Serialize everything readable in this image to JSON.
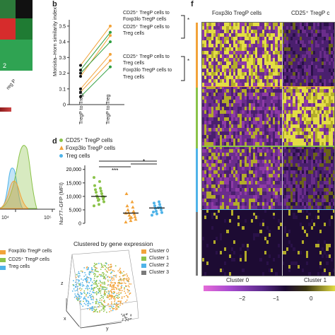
{
  "panel_b": {
    "letter": "b",
    "ylabel": "Morisita–Horn similarity index",
    "yticks": [
      "0",
      "0.1",
      "0.2",
      "0.3",
      "0.4",
      "0.5"
    ],
    "xticks": [
      "TregP to TregP",
      "TregP to Treg"
    ],
    "legend": [
      {
        "text": "CD25⁺ TregP cells to",
        "color": "#2e9e3e"
      },
      {
        "text": "Foxp3lo TregP cells",
        "color": "#2e9e3e"
      },
      {
        "text": "CD25⁺ TregP cells to",
        "color": "#f2a33a"
      },
      {
        "text": "Treg cells",
        "color": "#f2a33a"
      },
      {
        "text": "Foxp3lo TregP cells to",
        "color": "#f2a33a"
      },
      {
        "text": "Treg cells",
        "color": "#f2a33a"
      }
    ],
    "star1": "*",
    "star2": "*"
  },
  "panel_d": {
    "letter": "d",
    "legend": [
      {
        "text": "CD25⁺ TregP cells",
        "color": "#8bc34a",
        "marker": "•"
      },
      {
        "text": "Foxp3lo TregP cells",
        "color": "#f2a33a",
        "marker": "▲"
      },
      {
        "text": "Treg cells",
        "color": "#4fb3e8",
        "marker": "•"
      }
    ],
    "ylabel": "Nur77–GFP (MFI)",
    "yticks": [
      "0",
      "5,000",
      "10,000",
      "15,000",
      "20,000"
    ],
    "sig": [
      "***",
      "**",
      "*"
    ]
  },
  "panel_c": {
    "axis_ticks": [
      "10⁴",
      "10⁵"
    ],
    "legend": [
      {
        "text": "Foxp3lo TregP cells",
        "color": "#f2a33a"
      },
      {
        "text": "CD25⁺ TregP cells",
        "color": "#8bc34a"
      },
      {
        "text": "Treg cells",
        "color": "#4fb3e8"
      }
    ]
  },
  "panel_a": {
    "label_2": "2",
    "xlabel_frag": "reg P",
    "colorbar_color": "#8c1d1d"
  },
  "panel_e": {
    "title": "Clustered by gene expression",
    "legend": [
      {
        "text": "Cluster 0",
        "color": "#f2a33a"
      },
      {
        "text": "Cluster 1",
        "color": "#8bc34a"
      },
      {
        "text": "Cluster 2",
        "color": "#4fb3e8"
      },
      {
        "text": "Cluster 3",
        "color": "#7a7a7a"
      }
    ],
    "axes": [
      "x",
      "y",
      "z"
    ]
  },
  "panel_f": {
    "letter": "f",
    "col_header_1": "Foxp3lo TregP cells",
    "col_header_2": "CD25⁺ TregP c",
    "bottom_1": "Cluster 0",
    "bottom_2": "Cluster 1",
    "colorbar_ticks": [
      "−2",
      "−1",
      "0"
    ],
    "band_colors": [
      "#f2a33a",
      "#8bc34a",
      "#4fb3e8",
      "#7a7a7a"
    ]
  }
}
